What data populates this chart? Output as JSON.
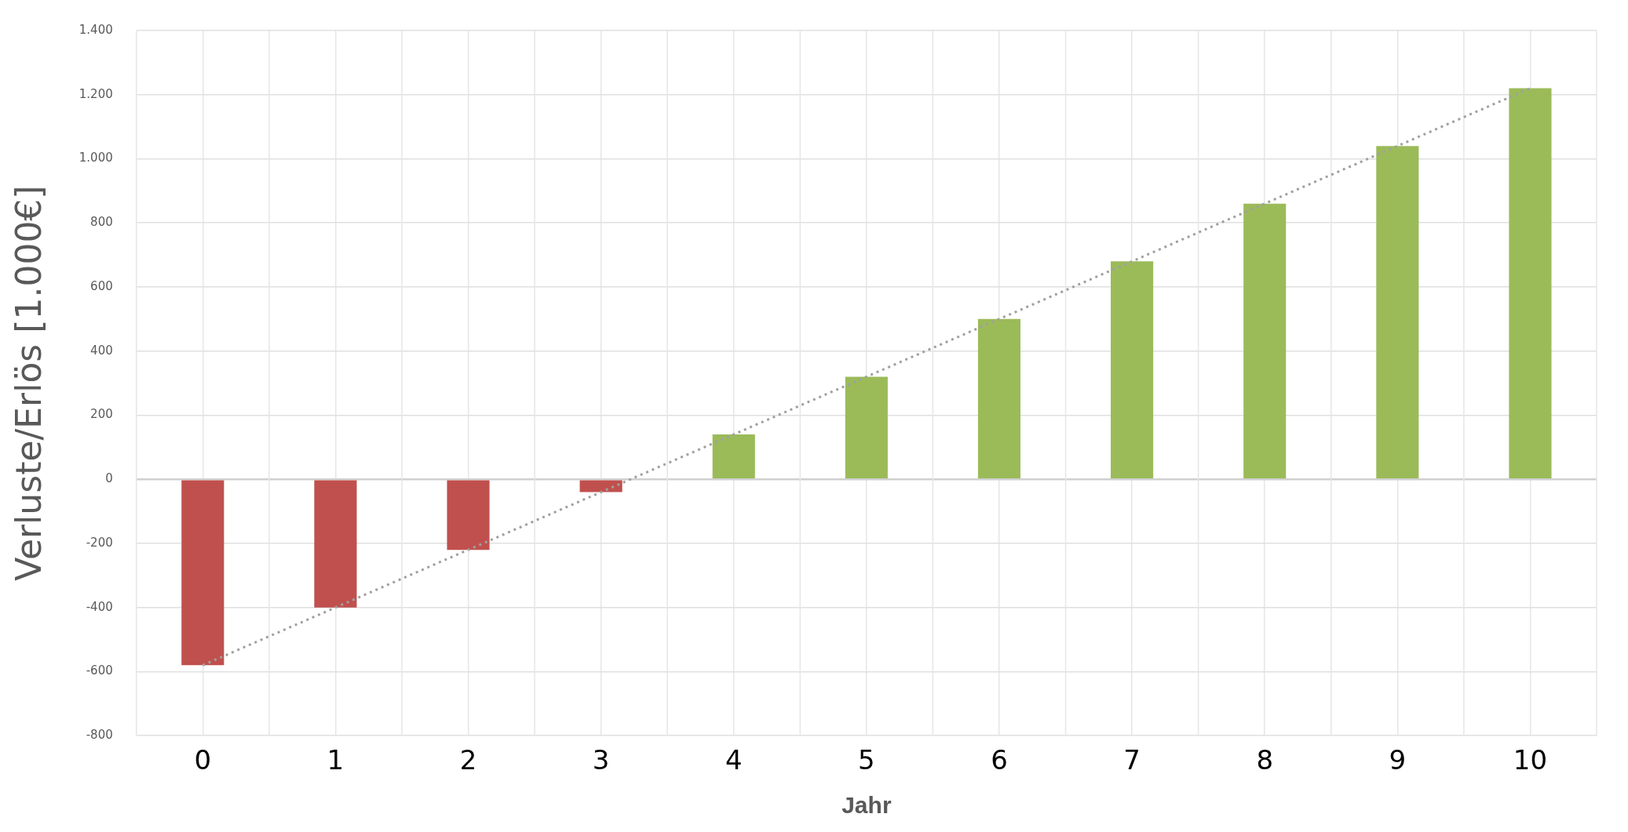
{
  "chart_data": {
    "type": "bar",
    "xlabel": "Jahr",
    "ylabel": "Verluste/Erlös [1.000€]",
    "categories": [
      "0",
      "1",
      "2",
      "3",
      "4",
      "5",
      "6",
      "7",
      "8",
      "9",
      "10"
    ],
    "series": [
      {
        "colors": [
          "#c0504d",
          "#c0504d",
          "#c0504d",
          "#c0504d",
          "#9bbb59",
          "#9bbb59",
          "#9bbb59",
          "#9bbb59",
          "#9bbb59",
          "#9bbb59",
          "#9bbb59"
        ],
        "values": [
          -580,
          -400,
          -220,
          -40,
          140,
          320,
          500,
          680,
          860,
          1040,
          1220
        ]
      },
      {
        "type": "line",
        "color": "#a0a0a0",
        "line_style": "dotted",
        "marker": "none",
        "values": [
          -580,
          -400,
          -220,
          -40,
          140,
          320,
          500,
          680,
          860,
          1040,
          1220
        ]
      }
    ],
    "ylim": [
      -800,
      1400
    ],
    "yticks": [
      {
        "value": -800,
        "label": "-800"
      },
      {
        "value": -600,
        "label": "-600"
      },
      {
        "value": -400,
        "label": "-400"
      },
      {
        "value": -200,
        "label": "-200"
      },
      {
        "value": 0,
        "label": "0"
      },
      {
        "value": 200,
        "label": "200"
      },
      {
        "value": 400,
        "label": "400"
      },
      {
        "value": 600,
        "label": "600"
      },
      {
        "value": 800,
        "label": "800"
      },
      {
        "value": 1000,
        "label": "1.000"
      },
      {
        "value": 1200,
        "label": "1.200"
      },
      {
        "value": 1400,
        "label": "1.400"
      }
    ],
    "grid": true,
    "legend": false
  }
}
